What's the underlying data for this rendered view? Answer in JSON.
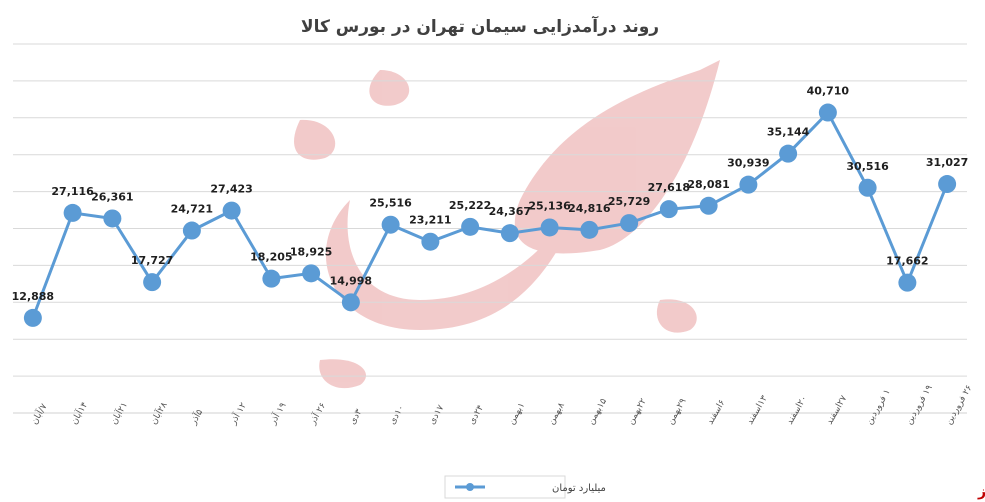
{
  "chart_data": {
    "type": "line",
    "title": "روند درآمدزایی سیمان تهران در بورس کالا",
    "categories": [
      "۷/آبان",
      "۱۴آبان",
      "۲۱آبان",
      "۲۸آبان",
      "۵آذر",
      "۱۲ آذر",
      "۱۹ آذر",
      "۲۶ آذر",
      "۳دی",
      "۱۰دی",
      "۱۷دی",
      "۲۴دی",
      "۱بهمن",
      "۸بهمن",
      "۱۵بهمن",
      "۲۲بهمن",
      "۲۹بهمن",
      "۶اسفند",
      "۱۳اسفند",
      "۲۰اسفند",
      "۲۷اسفند",
      "۱ فروردین",
      "۱۹ فروردین",
      "۲۶ فروردین"
    ],
    "series": [
      {
        "name": "میلیارد تومان",
        "values": [
          12888,
          27116,
          26361,
          17727,
          24721,
          27423,
          18205,
          18925,
          14998,
          25516,
          23211,
          25222,
          24367,
          25136,
          24816,
          25729,
          27618,
          28081,
          30939,
          35144,
          40710,
          30516,
          17662,
          31027
        ],
        "labels": [
          "12,888",
          "27,116",
          "26,361",
          "17,727",
          "24,721",
          "27,423",
          "18,205",
          "18,925",
          "14,998",
          "25,516",
          "23,211",
          "25,222",
          "24,367",
          "25,136",
          "24,816",
          "25,729",
          "27,618",
          "28,081",
          "30,939",
          "35,144",
          "40,710",
          "30,516",
          "17,662",
          "31,027"
        ]
      }
    ],
    "ylim": [
      0,
      50000
    ],
    "grid": true,
    "legend": "bottom-center"
  },
  "watermark": "بورس نیوز",
  "colors": {
    "line": "#5b9bd5",
    "marker": "#5b9bd5",
    "grid": "#d9d9d9",
    "watermark": "#c00000"
  }
}
